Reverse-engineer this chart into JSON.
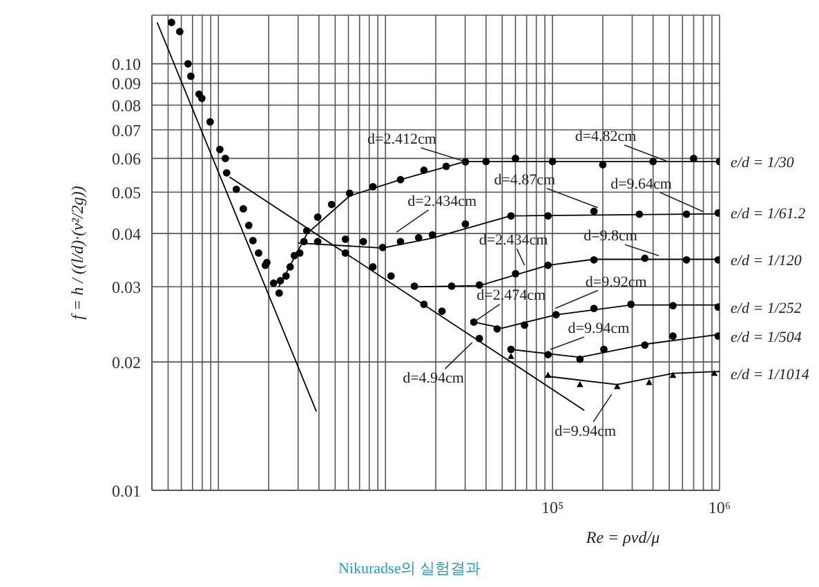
{
  "chart_data": {
    "type": "scatter",
    "xlabel": "Re = ρvd/μ",
    "ylabel": "f = h / ((l/d)·(v²/2g))",
    "log": "xy",
    "grid": true,
    "legend": false,
    "xlim": [
      400,
      1000000
    ],
    "ylim": [
      0.01,
      0.13
    ],
    "xticks": [
      {
        "value": 400,
        "label": null
      },
      {
        "value": 500,
        "label": null
      },
      {
        "value": 600,
        "label": null
      },
      {
        "value": 700,
        "label": null
      },
      {
        "value": 800,
        "label": null
      },
      {
        "value": 900,
        "label": null
      },
      {
        "value": 1000,
        "label": null
      },
      {
        "value": 2000,
        "label": null
      },
      {
        "value": 3000,
        "label": null
      },
      {
        "value": 4000,
        "label": null
      },
      {
        "value": 5000,
        "label": null
      },
      {
        "value": 6000,
        "label": null
      },
      {
        "value": 7000,
        "label": null
      },
      {
        "value": 8000,
        "label": null
      },
      {
        "value": 9000,
        "label": null
      },
      {
        "value": 10000,
        "label": null
      },
      {
        "value": 20000,
        "label": null
      },
      {
        "value": 30000,
        "label": null
      },
      {
        "value": 40000,
        "label": null
      },
      {
        "value": 50000,
        "label": null
      },
      {
        "value": 60000,
        "label": null
      },
      {
        "value": 70000,
        "label": null
      },
      {
        "value": 80000,
        "label": null
      },
      {
        "value": 90000,
        "label": null
      },
      {
        "value": 100000,
        "label": "10⁵"
      },
      {
        "value": 200000,
        "label": null
      },
      {
        "value": 300000,
        "label": null
      },
      {
        "value": 400000,
        "label": null
      },
      {
        "value": 500000,
        "label": null
      },
      {
        "value": 600000,
        "label": null
      },
      {
        "value": 700000,
        "label": null
      },
      {
        "value": 800000,
        "label": null
      },
      {
        "value": 900000,
        "label": null
      },
      {
        "value": 1000000,
        "label": "10⁶"
      }
    ],
    "yticks": [
      0.01,
      0.02,
      0.03,
      0.04,
      0.05,
      0.06,
      0.07,
      0.08,
      0.09,
      {
        "value": 0.1,
        "label": "0.10"
      }
    ],
    "series": [
      {
        "name": "e/d = 1/30",
        "type": "scatter",
        "marker": "circle",
        "color": "#000000",
        "x": [
          524,
          587,
          684,
          766,
          892,
          1020,
          1100,
          1280,
          1410,
          1520,
          1740,
          1910,
          2140,
          2310,
          2350,
          2690,
          3070,
          3380,
          3930,
          4760,
          6100,
          8420,
          12300,
          17000,
          23100,
          30100,
          40000,
          60000,
          100000,
          200000,
          400000,
          700000,
          1000000
        ],
        "values": [
          0.125,
          0.119,
          0.0935,
          0.0849,
          0.0731,
          0.063,
          0.06,
          0.0508,
          0.0457,
          0.0418,
          0.036,
          0.0337,
          0.0306,
          0.029,
          0.031,
          0.0334,
          0.036,
          0.0406,
          0.0437,
          0.0468,
          0.0497,
          0.0515,
          0.0535,
          0.0563,
          0.0575,
          0.0589,
          0.059,
          0.06,
          0.059,
          0.058,
          0.059,
          0.06,
          0.059
        ]
      },
      {
        "name": "e/d = 1/61.2",
        "type": "scatter",
        "marker": "circle",
        "color": "#000000",
        "x": [
          658,
          796,
          1120,
          1610,
          1950,
          2540,
          2850,
          3250,
          3930,
          5760,
          7370,
          9620,
          12300,
          15800,
          19100,
          30100,
          56400,
          94000,
          177000,
          331000,
          634000,
          981000
        ],
        "values": [
          0.1,
          0.083,
          0.0555,
          0.0385,
          0.0342,
          0.0318,
          0.0355,
          0.0383,
          0.0383,
          0.0388,
          0.0383,
          0.0371,
          0.0383,
          0.0391,
          0.0397,
          0.0421,
          0.044,
          0.044,
          0.0451,
          0.0444,
          0.0444,
          0.0447
        ]
      },
      {
        "name": "e/d = 1/120",
        "type": "scatter",
        "marker": "circle",
        "color": "#000000",
        "x": [
          5760,
          8410,
          10800,
          14900,
          24900,
          36500,
          60100,
          94000,
          177000,
          357000,
          634000,
          981000
        ],
        "values": [
          0.036,
          0.0334,
          0.0318,
          0.0301,
          0.0301,
          0.0303,
          0.0322,
          0.0337,
          0.0347,
          0.035,
          0.0347,
          0.0347
        ]
      },
      {
        "name": "e/d = 1/252",
        "type": "scatter",
        "marker": "circle",
        "color": "#000000",
        "x": [
          17000,
          21800,
          33800,
          46600,
          68000,
          105000,
          177000,
          295000,
          526000,
          981000
        ],
        "values": [
          0.0273,
          0.0263,
          0.0248,
          0.0239,
          0.0244,
          0.0258,
          0.0267,
          0.0273,
          0.0271,
          0.0269
        ]
      },
      {
        "name": "e/d = 1/504",
        "type": "scatter",
        "marker": "circle",
        "color": "#000000",
        "x": [
          36500,
          56400,
          94000,
          146000,
          203000,
          357000,
          526000,
          981000
        ],
        "values": [
          0.0227,
          0.0214,
          0.0208,
          0.0203,
          0.0214,
          0.0219,
          0.023,
          0.023
        ]
      },
      {
        "name": "e/d = 1/1014",
        "type": "scatter",
        "marker": "triangle",
        "color": "#000000",
        "x": [
          56400,
          94000,
          146000,
          244000,
          379000,
          526000,
          930000
        ],
        "values": [
          0.0206,
          0.0186,
          0.0177,
          0.0175,
          0.0179,
          0.0186,
          0.0188
        ]
      },
      {
        "type": "line",
        "marker": "none",
        "color": "#000000",
        "x": [
          430,
          3860
        ],
        "values": [
          0.125,
          0.0153
        ]
      },
      {
        "type": "line",
        "marker": "none",
        "color": "#000000",
        "x": [
          1165,
          155000
        ],
        "values": [
          0.0543,
          0.0154
        ]
      },
      {
        "type": "line",
        "marker": "none",
        "color": "#000000",
        "x": [
          2300,
          3400,
          6100,
          12300,
          30000,
          1000000
        ],
        "values": [
          0.03,
          0.04,
          0.049,
          0.0535,
          0.059,
          0.059
        ]
      },
      {
        "type": "line",
        "marker": "none",
        "color": "#000000",
        "x": [
          3000,
          9600,
          19000,
          56000,
          1000000
        ],
        "values": [
          0.038,
          0.037,
          0.039,
          0.044,
          0.0445
        ]
      },
      {
        "type": "line",
        "marker": "none",
        "color": "#000000",
        "x": [
          14900,
          36500,
          94000,
          177000,
          1000000
        ],
        "values": [
          0.03,
          0.0302,
          0.0337,
          0.0348,
          0.0348
        ]
      },
      {
        "type": "line",
        "marker": "none",
        "color": "#000000",
        "x": [
          33800,
          50000,
          105000,
          295000,
          1000000
        ],
        "values": [
          0.0248,
          0.024,
          0.0258,
          0.0272,
          0.0272
        ]
      },
      {
        "type": "line",
        "marker": "none",
        "color": "#000000",
        "x": [
          56000,
          146000,
          357000,
          1000000
        ],
        "values": [
          0.0214,
          0.0205,
          0.022,
          0.0232
        ]
      },
      {
        "type": "line",
        "marker": "none",
        "color": "#000000",
        "x": [
          94000,
          244000,
          526000,
          1000000
        ],
        "values": [
          0.0185,
          0.0177,
          0.0188,
          0.019
        ]
      }
    ],
    "annotations": [
      {
        "text": "d=2.412cm",
        "x": 30100,
        "y": 0.059
      },
      {
        "text": "d=4.82cm",
        "x": 490000,
        "y": 0.059
      },
      {
        "text": "d=4.87cm",
        "x": 187000,
        "y": 0.046
      },
      {
        "text": "d=9.64cm",
        "x": 800000,
        "y": 0.045
      },
      {
        "text": "d=2.434cm",
        "x": 11650,
        "y": 0.0403
      },
      {
        "text": "d=9.8cm",
        "x": 433000,
        "y": 0.0355
      },
      {
        "text": "d=2.434cm",
        "x": 68000,
        "y": 0.0337
      },
      {
        "text": "d=9.92cm",
        "x": 104000,
        "y": 0.0267
      },
      {
        "text": "d=2.474cm",
        "x": 33800,
        "y": 0.0248
      },
      {
        "text": "d=9.94cm",
        "x": 97000,
        "y": 0.0214
      },
      {
        "text": "d=4.94cm",
        "x": 33000,
        "y": 0.0222
      },
      {
        "text": "d=9.94cm",
        "x": 226000,
        "y": 0.0168
      },
      "Nikuradse의 실험결과"
    ]
  }
}
